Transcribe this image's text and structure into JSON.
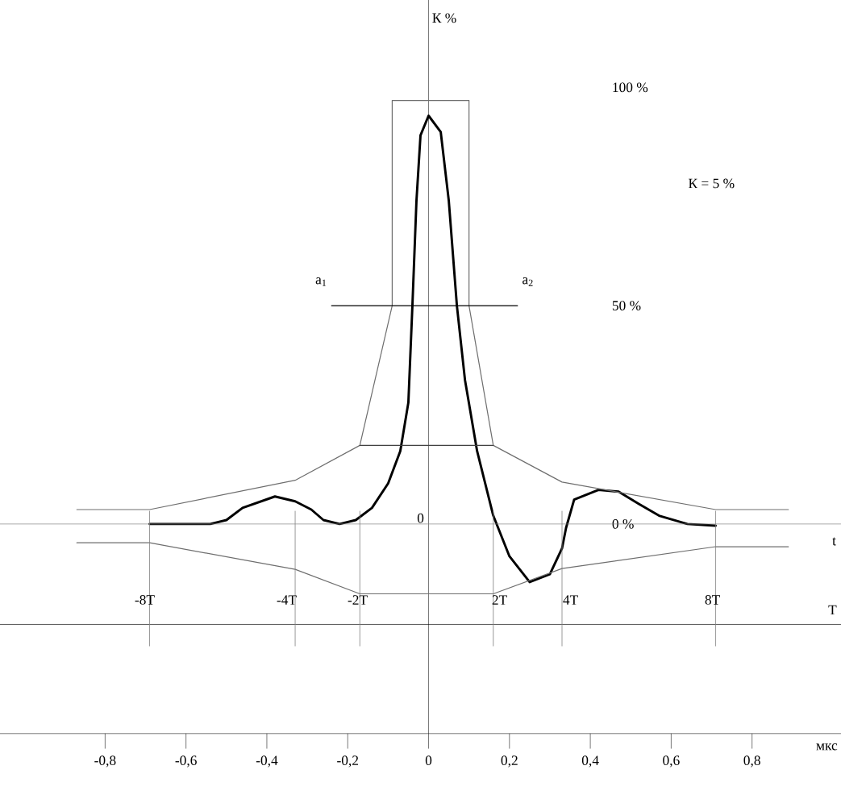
{
  "chart_data": {
    "type": "line",
    "ylabel": "К %",
    "xlabel": "мкс",
    "x2label": "T",
    "xlim": [
      -1.06,
      1.02
    ],
    "ylim": [
      -48,
      120
    ],
    "xticks": [
      {
        "value": -0.8,
        "label": "-0,8"
      },
      {
        "value": -0.6,
        "label": "-0,6"
      },
      {
        "value": -0.4,
        "label": "-0,4"
      },
      {
        "value": -0.2,
        "label": "-0,2"
      },
      0,
      {
        "value": 0.2,
        "label": "0,2"
      },
      {
        "value": 0.4,
        "label": "0,4"
      },
      {
        "value": 0.6,
        "label": "0,6"
      },
      {
        "value": 0.8,
        "label": "0,8"
      }
    ],
    "yticks": [
      {
        "value": 0,
        "label": "0 %"
      },
      {
        "value": 50,
        "label": "50 %"
      },
      {
        "value": 100,
        "label": "100 %"
      }
    ],
    "x2lim": [
      -12.1,
      11.6
    ],
    "x2ticks": [
      {
        "value": -8,
        "label": "-8T"
      },
      {
        "value": -4,
        "label": "-4T"
      },
      {
        "value": -2,
        "label": "-2T"
      },
      {
        "value": 2,
        "label": "2T"
      },
      {
        "value": 4,
        "label": "4T"
      },
      {
        "value": 8,
        "label": "8T"
      }
    ],
    "ref_lines": [
      {
        "axis": "y",
        "value": 0,
        "color": "#808080"
      },
      {
        "axis": "y",
        "value": -23,
        "color": "#000000"
      },
      {
        "axis": "x",
        "value": -0.69,
        "color": "#808080"
      },
      {
        "axis": "x",
        "value": -0.33,
        "color": "#808080"
      },
      {
        "axis": "x",
        "value": -0.17,
        "color": "#808080"
      },
      {
        "axis": "x",
        "value": 0.16,
        "color": "#808080"
      },
      {
        "axis": "x",
        "value": 0.33,
        "color": "#808080"
      },
      {
        "axis": "x",
        "value": 0.71,
        "color": "#808080"
      }
    ],
    "series": [
      {
        "color": "#000000",
        "x": [
          -0.69,
          -0.54,
          -0.5,
          -0.46,
          -0.38,
          -0.33,
          -0.29,
          -0.26,
          -0.22,
          -0.18,
          -0.14,
          -0.1,
          -0.07,
          -0.05,
          -0.04,
          -0.03,
          -0.02,
          0.0,
          0.03,
          0.05,
          0.07,
          0.09,
          0.12,
          0.16,
          0.2,
          0.25,
          0.3,
          0.33,
          0.34,
          0.36,
          0.42,
          0.47,
          0.52,
          0.57,
          0.64,
          0.71
        ],
        "values": [
          0,
          0,
          0.9,
          3.7,
          6.3,
          5.2,
          3.3,
          0.9,
          0,
          0.9,
          3.7,
          9.3,
          16.7,
          27.8,
          50,
          74,
          89,
          93.5,
          89.8,
          74,
          50,
          33,
          16.7,
          1.9,
          -7.4,
          -13.3,
          -11.5,
          -5.6,
          -0.9,
          5.6,
          7.8,
          7.4,
          4.6,
          1.9,
          0,
          -0.4
        ]
      },
      {
        "color": "#6e6e6e",
        "x": [
          -0.87,
          -0.69,
          -0.33,
          -0.17,
          -0.09,
          -0.09,
          0.1,
          0.1,
          0.16,
          0.33,
          0.71,
          0.89
        ],
        "values": [
          3.3,
          3.3,
          10,
          18,
          50,
          97,
          97,
          50,
          18,
          9.6,
          3.3,
          3.3
        ]
      },
      {
        "color": "#6e6e6e",
        "x": [
          -0.87,
          -0.69,
          -0.33,
          -0.17,
          0.16,
          0.33,
          0.71,
          0.89
        ],
        "values": [
          -4.3,
          -4.3,
          -10.4,
          -16,
          -16,
          -10.2,
          -5.2,
          -5.2
        ]
      },
      {
        "color": "#404040",
        "x": [
          -0.17,
          0.16
        ],
        "values": [
          18,
          18
        ]
      },
      {
        "color": "#000000",
        "x": [
          -0.24,
          0.22
        ],
        "values": [
          50,
          50
        ]
      }
    ],
    "annotations": [
      "К = 5 %",
      "t",
      {
        "text": "a$_{1}$",
        "x": -0.24,
        "y": 50
      },
      {
        "text": "a$_{2}$",
        "x": 0.22,
        "y": 50
      },
      {
        "text": "0",
        "x": 0,
        "y": 0
      }
    ]
  }
}
